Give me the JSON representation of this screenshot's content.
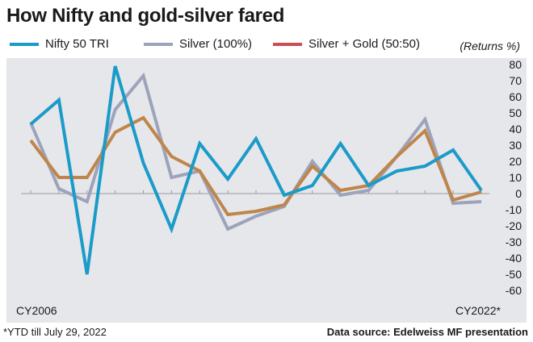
{
  "title": "How Nifty and gold-silver fared",
  "units_label": "(Returns %)",
  "footnote": "*YTD till July 29, 2022",
  "source": "Data source: Edelweiss MF presentation",
  "colors": {
    "nifty": "#1a9bc9",
    "silver": "#9ea3bc",
    "silver_gold": "#c0854a",
    "silver_gold_legend": "#c94f55",
    "background": "#e6e7ea",
    "gridline": "#9a9aa0"
  },
  "chart_data": {
    "type": "line",
    "x": [
      2006,
      2007,
      2008,
      2009,
      2010,
      2011,
      2012,
      2013,
      2014,
      2015,
      2016,
      2017,
      2018,
      2019,
      2020,
      2021,
      2022
    ],
    "x_tick_labels": [
      "CY2006",
      "CY2022*"
    ],
    "ylim": [
      -60,
      80
    ],
    "yticks": [
      80,
      70,
      60,
      50,
      40,
      30,
      20,
      10,
      0,
      -10,
      -20,
      -30,
      -40,
      -50,
      -60
    ],
    "ylabel": "(Returns %)",
    "grid": "zero-line",
    "legend": "top",
    "series": [
      {
        "name": "Nifty 50 TRI",
        "color": "#1a9bc9",
        "values": [
          43,
          58,
          -50,
          79,
          19,
          -22,
          31,
          9,
          34,
          -1,
          5,
          31,
          5,
          14,
          17,
          27,
          2
        ]
      },
      {
        "name": "Silver (100%)",
        "color": "#9ea3bc",
        "values": [
          44,
          3,
          -5,
          52,
          73,
          10,
          14,
          -22,
          -14,
          -8,
          20,
          -1,
          2,
          23,
          46,
          -6,
          -5
        ]
      },
      {
        "name": "Silver + Gold (50:50)",
        "color": "#c94f55",
        "values": [
          33,
          10,
          10,
          38,
          47,
          23,
          14,
          -13,
          -11,
          -7,
          17,
          2,
          5,
          23,
          39,
          -4,
          1
        ]
      }
    ]
  }
}
